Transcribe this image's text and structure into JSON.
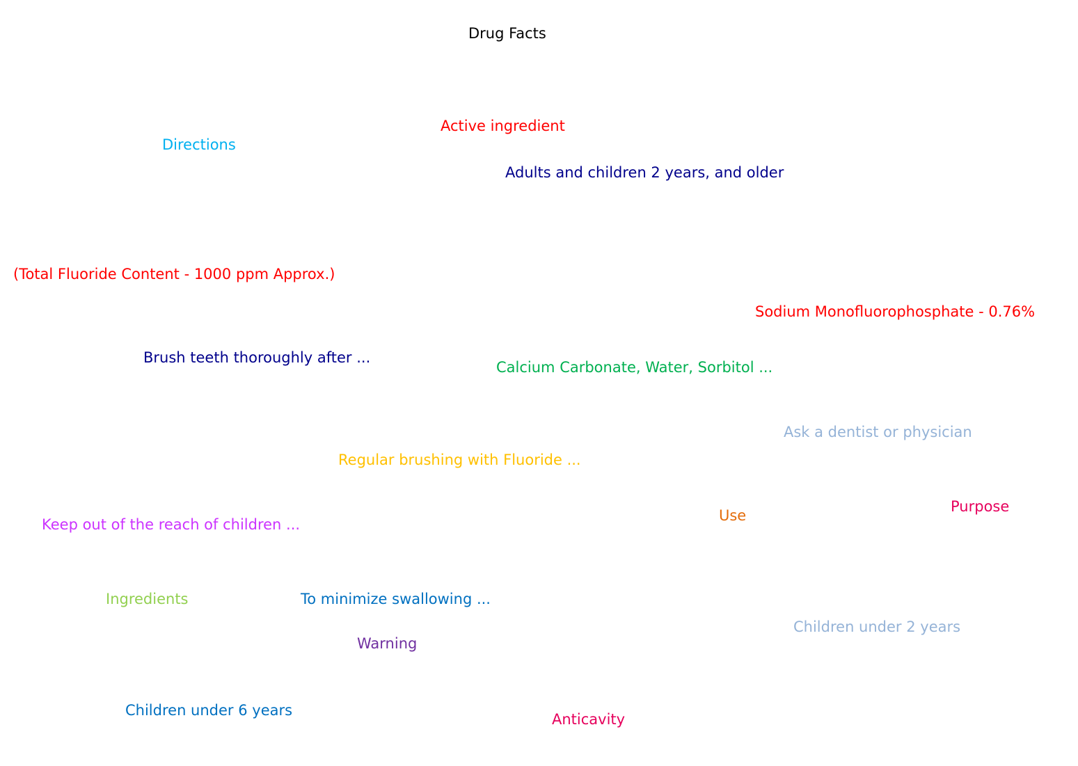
{
  "title": "Drug Facts",
  "labels": {
    "active_ingredient": {
      "text": "Active ingredient",
      "color": "#ff0000"
    },
    "directions": {
      "text": "Directions",
      "color": "#00b0f0"
    },
    "adults_children": {
      "text": "Adults and children 2 years, and older",
      "color": "#00008b"
    },
    "total_fluoride": {
      "text": "(Total Fluoride Content - 1000 ppm Approx.)",
      "color": "#ff0000"
    },
    "sodium_mfp": {
      "text": "Sodium Monofluorophosphate - 0.76%",
      "color": "#ff0000"
    },
    "brush_teeth": {
      "text": "Brush teeth thoroughly after ...",
      "color": "#00008b"
    },
    "calcium_carbonate": {
      "text": "Calcium Carbonate, Water, Sorbitol ...",
      "color": "#00b050"
    },
    "ask_dentist": {
      "text": "Ask a dentist or physician",
      "color": "#95b3d7"
    },
    "regular_brushing": {
      "text": "Regular brushing with Fluoride ...",
      "color": "#ffc000"
    },
    "purpose": {
      "text": "Purpose",
      "color": "#e6005c"
    },
    "use": {
      "text": "Use",
      "color": "#e46c0a"
    },
    "keep_out": {
      "text": "Keep out of the reach of children ...",
      "color": "#cc33ff"
    },
    "ingredients": {
      "text": "Ingredients",
      "color": "#92d050"
    },
    "minimize_swallowing": {
      "text": "To minimize swallowing ...",
      "color": "#0070c0"
    },
    "children_under_2": {
      "text": "Children under 2 years",
      "color": "#95b3d7"
    },
    "warning": {
      "text": "Warning",
      "color": "#7030a0"
    },
    "children_under_6": {
      "text": "Children under 6 years",
      "color": "#0070c0"
    },
    "anticavity": {
      "text": "Anticavity",
      "color": "#e6005c"
    }
  }
}
